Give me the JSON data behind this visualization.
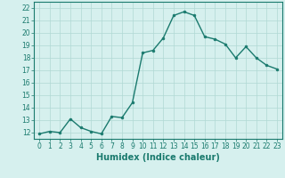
{
  "x": [
    0,
    1,
    2,
    3,
    4,
    5,
    6,
    7,
    8,
    9,
    10,
    11,
    12,
    13,
    14,
    15,
    16,
    17,
    18,
    19,
    20,
    21,
    22,
    23
  ],
  "y": [
    11.9,
    12.1,
    12.0,
    13.1,
    12.4,
    12.1,
    11.9,
    13.3,
    13.2,
    14.4,
    18.4,
    18.6,
    19.6,
    21.4,
    21.7,
    21.4,
    19.7,
    19.5,
    19.1,
    18.0,
    18.9,
    18.0,
    17.4,
    17.1
  ],
  "line_color": "#1a7a6e",
  "marker": "o",
  "marker_size": 2,
  "bg_color": "#d6f0ee",
  "grid_color": "#b0d8d4",
  "xlabel": "Humidex (Indice chaleur)",
  "ylim": [
    11.5,
    22.5
  ],
  "xlim": [
    -0.5,
    23.5
  ],
  "yticks": [
    12,
    13,
    14,
    15,
    16,
    17,
    18,
    19,
    20,
    21,
    22
  ],
  "xticks": [
    0,
    1,
    2,
    3,
    4,
    5,
    6,
    7,
    8,
    9,
    10,
    11,
    12,
    13,
    14,
    15,
    16,
    17,
    18,
    19,
    20,
    21,
    22,
    23
  ],
  "tick_color": "#1a7a6e",
  "label_color": "#1a7a6e",
  "xlabel_fontsize": 7,
  "tick_fontsize": 5.5,
  "linewidth": 1.0
}
